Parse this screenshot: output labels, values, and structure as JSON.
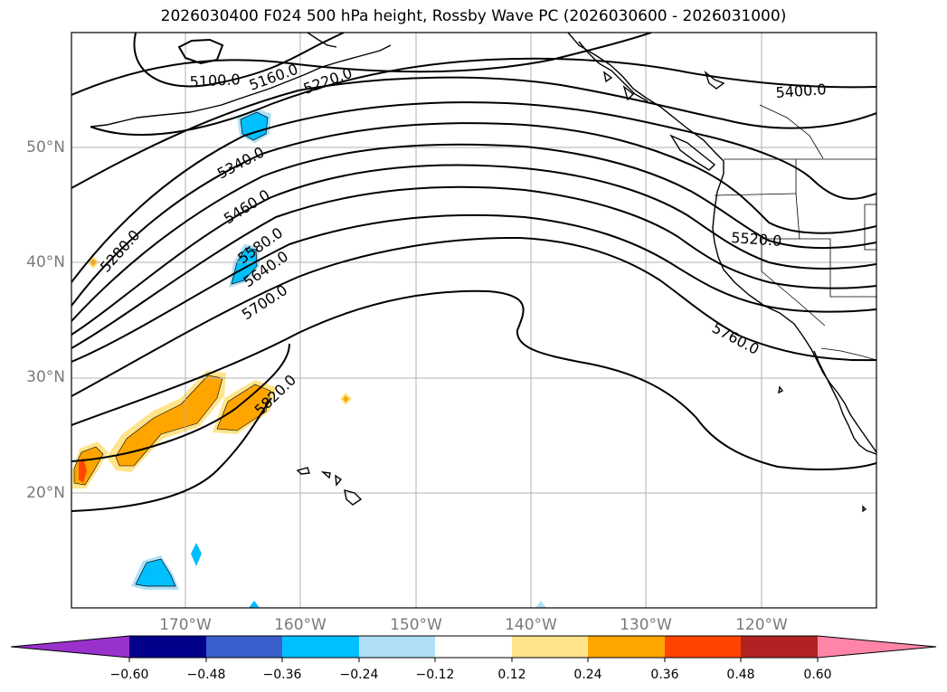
{
  "title": "2026030400 F024 500 hPa height, Rossby Wave PC (2026030600 - 2026031000)",
  "lat_labels": [
    "50°N",
    "40°N",
    "30°N",
    "20°N"
  ],
  "lon_labels": [
    "170°W",
    "160°W",
    "150°W",
    "140°W",
    "130°W",
    "120°W"
  ],
  "height_contours": [
    "5100.0",
    "5160.0",
    "5220.0",
    "5280.0",
    "5340.0",
    "5400.0",
    "5460.0",
    "5520.0",
    "5580.0",
    "5640.0",
    "5700.0",
    "5760.0",
    "5820.0"
  ],
  "colorbar": {
    "ticks": [
      "−0.60",
      "−0.48",
      "−0.36",
      "−0.24",
      "−0.12",
      "0.12",
      "0.24",
      "0.36",
      "0.48",
      "0.60"
    ],
    "colors": [
      "#9932cc",
      "#00008b",
      "#3a5fcd",
      "#00bfff",
      "#b0e0f8",
      "#ffffff",
      "#ffe48c",
      "#ffa500",
      "#ff4500",
      "#b22222",
      "#ff85a8"
    ]
  }
}
